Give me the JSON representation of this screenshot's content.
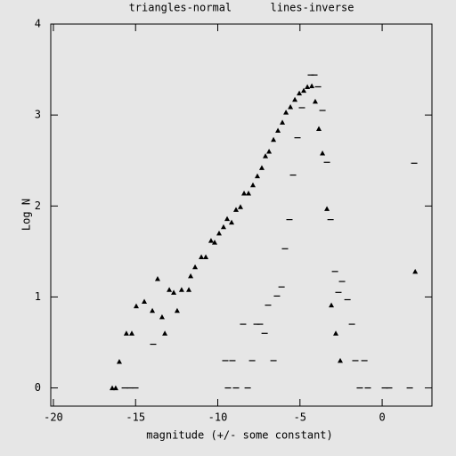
{
  "chart_data": {
    "type": "scatter",
    "title": "triangles-normal      lines-inverse",
    "x_label": "magnitude (+/- some constant)",
    "y_label": "Log N",
    "xlim": [
      -20.16,
      3.03
    ],
    "ylim": [
      -0.2,
      4.0
    ],
    "xticks": [
      -20,
      -15,
      -10,
      -5,
      0
    ],
    "yticks": [
      0,
      1,
      2,
      3,
      4
    ],
    "series": [
      {
        "marker": "triangle",
        "color": "#000000",
        "x": [
          -16.42,
          -16.21,
          -15.99,
          -15.56,
          -15.23,
          -14.96,
          -14.47,
          -13.98,
          -13.66,
          -13.39,
          -13.22,
          -12.95,
          -12.68,
          -12.47,
          -12.2,
          -11.76,
          -11.65,
          -11.38,
          -11.0,
          -10.73,
          -10.41,
          -10.19,
          -9.92,
          -9.65,
          -9.43,
          -9.16,
          -8.89,
          -8.62,
          -8.4,
          -8.13,
          -7.86,
          -7.59,
          -7.32,
          -7.1,
          -6.88,
          -6.61,
          -6.34,
          -6.07,
          -5.85,
          -5.58,
          -5.31,
          -5.04,
          -4.77,
          -4.55,
          -4.28,
          -4.07,
          -3.85,
          -3.63,
          -3.36,
          -3.09,
          -2.82,
          -2.55,
          2.01
        ],
        "values": [
          0,
          0,
          0.29,
          0.6,
          0.6,
          0.9,
          0.95,
          0.85,
          1.2,
          0.78,
          0.6,
          1.08,
          1.05,
          0.85,
          1.08,
          1.08,
          1.23,
          1.33,
          1.44,
          1.44,
          1.62,
          1.6,
          1.7,
          1.77,
          1.86,
          1.82,
          1.96,
          1.99,
          2.14,
          2.14,
          2.23,
          2.33,
          2.42,
          2.55,
          2.6,
          2.73,
          2.83,
          2.92,
          3.03,
          3.09,
          3.17,
          3.24,
          3.27,
          3.31,
          3.32,
          3.15,
          2.85,
          2.58,
          1.97,
          0.91,
          0.6,
          0.3,
          1.28
        ]
      },
      {
        "marker": "dash",
        "color": "#000000",
        "x": [
          -15.66,
          -15.34,
          -15.01,
          -13.93,
          -9.54,
          -9.11,
          -9.38,
          -8.89,
          -8.18,
          -8.46,
          -7.91,
          -7.64,
          -7.43,
          -7.15,
          -6.94,
          -6.61,
          -6.4,
          -6.12,
          -5.91,
          -5.64,
          -5.42,
          -5.15,
          -4.88,
          -4.34,
          -4.12,
          -3.9,
          -3.63,
          -3.36,
          -3.14,
          -2.87,
          -2.66,
          -2.44,
          -2.11,
          -1.84,
          -1.63,
          -1.08,
          -1.36,
          -0.87,
          0.16,
          0.43,
          1.68,
          1.95
        ],
        "values": [
          0,
          0,
          0,
          0.48,
          0.3,
          0.3,
          0,
          0,
          0,
          0.7,
          0.3,
          0.7,
          0.7,
          0.6,
          0.91,
          0.3,
          1.01,
          1.11,
          1.53,
          1.85,
          2.34,
          2.75,
          3.08,
          3.44,
          3.44,
          3.31,
          3.05,
          2.48,
          1.85,
          1.28,
          1.05,
          1.17,
          0.97,
          0.7,
          0.3,
          0.3,
          0,
          0,
          0,
          0,
          0,
          2.47
        ]
      }
    ]
  }
}
